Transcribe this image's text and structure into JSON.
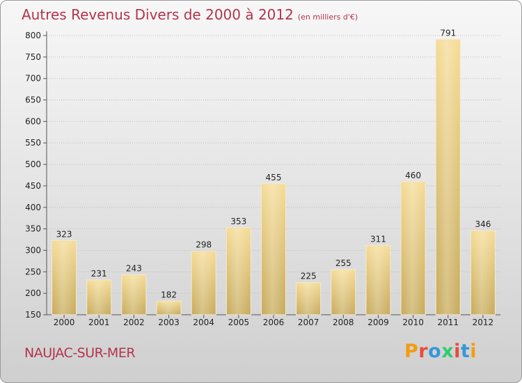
{
  "header": {
    "title": "Autres Revenus Divers de 2000 à 2012",
    "unit": "(en milliers d'€)"
  },
  "footer": {
    "commune": "NAUJAC-SUR-MER",
    "logo_text": "Proxiti",
    "logo_colors": [
      "#f39c12",
      "#e74c3c",
      "#3498db",
      "#2ecc71",
      "#e74c3c",
      "#3498db",
      "#f39c12"
    ]
  },
  "colors": {
    "title": "#b3344b",
    "bar_light": "#f5dc97",
    "bar_dark": "#c8ac5f",
    "grid": "#bdbdbd",
    "axis": "#555555"
  },
  "chart_data": {
    "type": "bar",
    "title": "Autres Revenus Divers de 2000 à 2012",
    "subtitle": "(en milliers d'€)",
    "xlabel": "",
    "ylabel": "",
    "categories": [
      "2000",
      "2001",
      "2002",
      "2003",
      "2004",
      "2005",
      "2006",
      "2007",
      "2008",
      "2009",
      "2010",
      "2011",
      "2012"
    ],
    "values": [
      323,
      231,
      243,
      182,
      298,
      353,
      455,
      225,
      255,
      311,
      460,
      791,
      346
    ],
    "ylim": [
      150,
      800
    ],
    "yticks": [
      150,
      200,
      250,
      300,
      350,
      400,
      450,
      500,
      550,
      600,
      650,
      700,
      750,
      800
    ],
    "grid": true,
    "legend": "none"
  }
}
